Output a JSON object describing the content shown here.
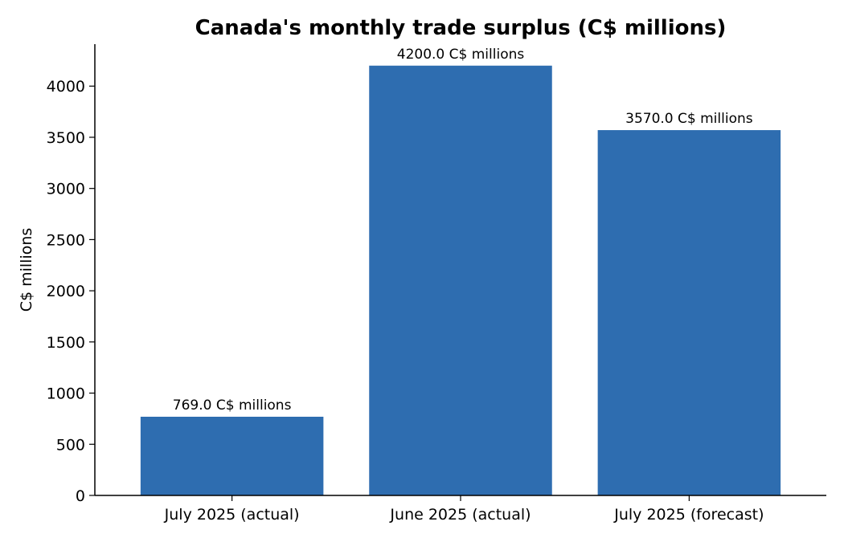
{
  "chart_data": {
    "type": "bar",
    "title": "Canada's monthly trade surplus (C$ millions)",
    "xlabel": "",
    "ylabel": "C$ millions",
    "categories": [
      "July 2025 (actual)",
      "June 2025 (actual)",
      "July 2025 (forecast)"
    ],
    "values": [
      769.0,
      4200.0,
      3570.0
    ],
    "data_labels": [
      "769.0 C$ millions",
      "4200.0 C$ millions",
      "3570.0 C$ millions"
    ],
    "ylim": [
      0,
      4410
    ],
    "yticks": [
      0,
      500,
      1000,
      1500,
      2000,
      2500,
      3000,
      3500,
      4000
    ],
    "bar_color": "#2e6db0",
    "grid": false,
    "legend": "none"
  }
}
